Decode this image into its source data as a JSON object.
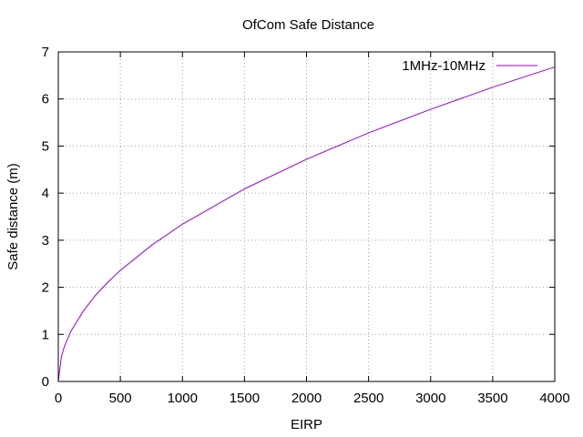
{
  "chart_data": {
    "type": "line",
    "title": "OfCom Safe Distance",
    "xlabel": "EIRP",
    "ylabel": "Safe distance (m)",
    "xlim": [
      0,
      4000
    ],
    "ylim": [
      0,
      7
    ],
    "xticks": [
      0,
      500,
      1000,
      1500,
      2000,
      2500,
      3000,
      3500,
      4000
    ],
    "yticks": [
      0,
      1,
      2,
      3,
      4,
      5,
      6,
      7
    ],
    "grid": true,
    "legend_position": "top-right",
    "series": [
      {
        "name": "1MHz-10MHz",
        "color": "#9400d3",
        "function": "0.1056 * sqrt(EIRP)",
        "x": [
          0,
          25,
          50,
          100,
          200,
          300,
          400,
          500,
          750,
          1000,
          1500,
          2000,
          2500,
          3000,
          3500,
          4000
        ],
        "y": [
          0,
          0.53,
          0.75,
          1.06,
          1.49,
          1.83,
          2.11,
          2.36,
          2.89,
          3.34,
          4.09,
          4.72,
          5.28,
          5.78,
          6.25,
          6.68
        ]
      }
    ]
  }
}
